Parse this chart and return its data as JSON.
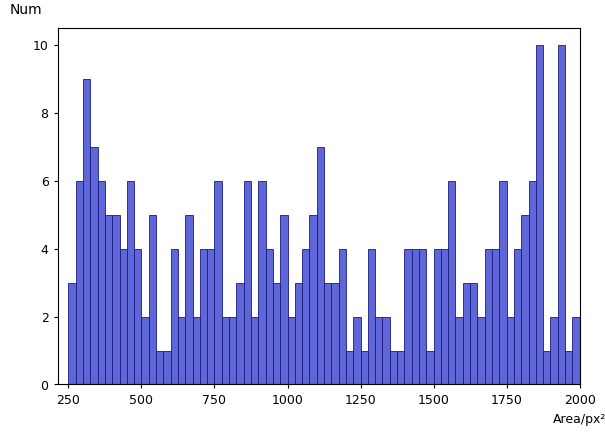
{
  "bar_lefts": [
    250,
    275,
    300,
    325,
    350,
    375,
    400,
    425,
    450,
    475,
    500,
    525,
    550,
    575,
    600,
    625,
    650,
    675,
    700,
    725,
    750,
    775,
    800,
    825,
    850,
    875,
    900,
    925,
    950,
    975,
    1000,
    1025,
    1050,
    1075,
    1100,
    1125,
    1150,
    1175,
    1200,
    1225,
    1250,
    1275,
    1300,
    1325,
    1350,
    1375,
    1400,
    1425,
    1450,
    1475,
    1500,
    1525,
    1550,
    1575,
    1600,
    1625,
    1650,
    1675,
    1700,
    1725,
    1750,
    1775,
    1800,
    1825,
    1850,
    1875,
    1900,
    1925,
    1950,
    1975
  ],
  "bar_heights": [
    3,
    6,
    9,
    7,
    6,
    5,
    5,
    4,
    6,
    4,
    2,
    5,
    1,
    1,
    4,
    2,
    5,
    2,
    4,
    4,
    6,
    2,
    2,
    3,
    6,
    2,
    6,
    4,
    3,
    5,
    2,
    3,
    4,
    5,
    7,
    3,
    3,
    4,
    1,
    2,
    1,
    4,
    2,
    2,
    1,
    1,
    4,
    4,
    4,
    1,
    4,
    4,
    6,
    2,
    3,
    3,
    2,
    4,
    4,
    6,
    2,
    4,
    5,
    6,
    10,
    1,
    2,
    10,
    1,
    2
  ],
  "bin_width": 25,
  "bar_color": "#5f66d8",
  "bar_edge_color": "#1a1a80",
  "xlabel": "Area/px²",
  "ylabel": "Num",
  "xlim": [
    213,
    2000
  ],
  "ylim": [
    0,
    10.5
  ],
  "xticks": [
    250,
    500,
    750,
    1000,
    1250,
    1500,
    1750,
    2000
  ],
  "yticks": [
    0,
    2,
    4,
    6,
    8,
    10
  ],
  "xlabel_fontsize": 9,
  "ylabel_fontsize": 10,
  "tick_labelsize": 9
}
